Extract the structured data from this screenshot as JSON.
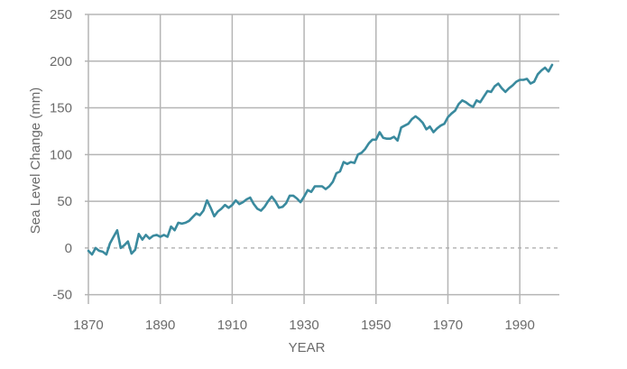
{
  "chart_data": {
    "type": "line",
    "title": "",
    "xlabel": "YEAR",
    "ylabel": "Sea Level Change (mm)",
    "xlim": [
      1869,
      2001
    ],
    "ylim": [
      -60,
      250
    ],
    "x_ticks": [
      1870,
      1890,
      1910,
      1930,
      1950,
      1970,
      1990
    ],
    "y_ticks": [
      -50,
      0,
      50,
      100,
      150,
      200,
      250
    ],
    "grid": true,
    "zero_line": "dashed",
    "line_color": "#3a8a9e",
    "grid_color": "#b5b5b5",
    "series": [
      {
        "x": [
          1870,
          1871,
          1872,
          1873,
          1874,
          1875,
          1876,
          1877,
          1878,
          1879,
          1880,
          1881,
          1882,
          1883,
          1884,
          1885,
          1886,
          1887,
          1888,
          1889,
          1890,
          1891,
          1892,
          1893,
          1894,
          1895,
          1896,
          1897,
          1898,
          1899,
          1900,
          1901,
          1902,
          1903,
          1904,
          1905,
          1906,
          1907,
          1908,
          1909,
          1910,
          1911,
          1912,
          1913,
          1914,
          1915,
          1916,
          1917,
          1918,
          1919,
          1920,
          1921,
          1922,
          1923,
          1924,
          1925,
          1926,
          1927,
          1928,
          1929,
          1930,
          1931,
          1932,
          1933,
          1934,
          1935,
          1936,
          1937,
          1938,
          1939,
          1940,
          1941,
          1942,
          1943,
          1944,
          1945,
          1946,
          1947,
          1948,
          1949,
          1950,
          1951,
          1952,
          1953,
          1954,
          1955,
          1956,
          1957,
          1958,
          1959,
          1960,
          1961,
          1962,
          1963,
          1964,
          1965,
          1966,
          1967,
          1968,
          1969,
          1970,
          1971,
          1972,
          1973,
          1974,
          1975,
          1976,
          1977,
          1978,
          1979,
          1980,
          1981,
          1982,
          1983,
          1984,
          1985,
          1986,
          1987,
          1988,
          1989,
          1990,
          1991,
          1992,
          1993,
          1994,
          1995,
          1996,
          1997,
          1998,
          1999
        ],
        "y": [
          -3,
          -7,
          0,
          -3,
          -4,
          -7,
          5,
          12,
          19,
          0,
          3,
          7,
          -6,
          -2,
          15,
          9,
          14,
          10,
          13,
          14,
          12,
          14,
          12,
          23,
          19,
          27,
          26,
          27,
          29,
          33,
          37,
          35,
          40,
          51,
          43,
          34,
          39,
          42,
          46,
          43,
          46,
          51,
          47,
          49,
          52,
          54,
          47,
          42,
          40,
          44,
          50,
          55,
          50,
          43,
          44,
          48,
          56,
          56,
          53,
          49,
          55,
          62,
          60,
          66,
          66,
          66,
          63,
          66,
          71,
          80,
          82,
          92,
          90,
          92,
          91,
          100,
          102,
          106,
          112,
          116,
          116,
          124,
          118,
          117,
          117,
          119,
          115,
          129,
          131,
          133,
          138,
          141,
          138,
          134,
          127,
          130,
          124,
          128,
          131,
          133,
          140,
          144,
          147,
          154,
          158,
          156,
          153,
          151,
          158,
          156,
          162,
          168,
          167,
          173,
          176,
          171,
          167,
          171,
          174,
          178,
          180,
          180,
          181,
          176,
          178,
          186,
          190,
          193,
          189,
          196
        ]
      }
    ]
  }
}
